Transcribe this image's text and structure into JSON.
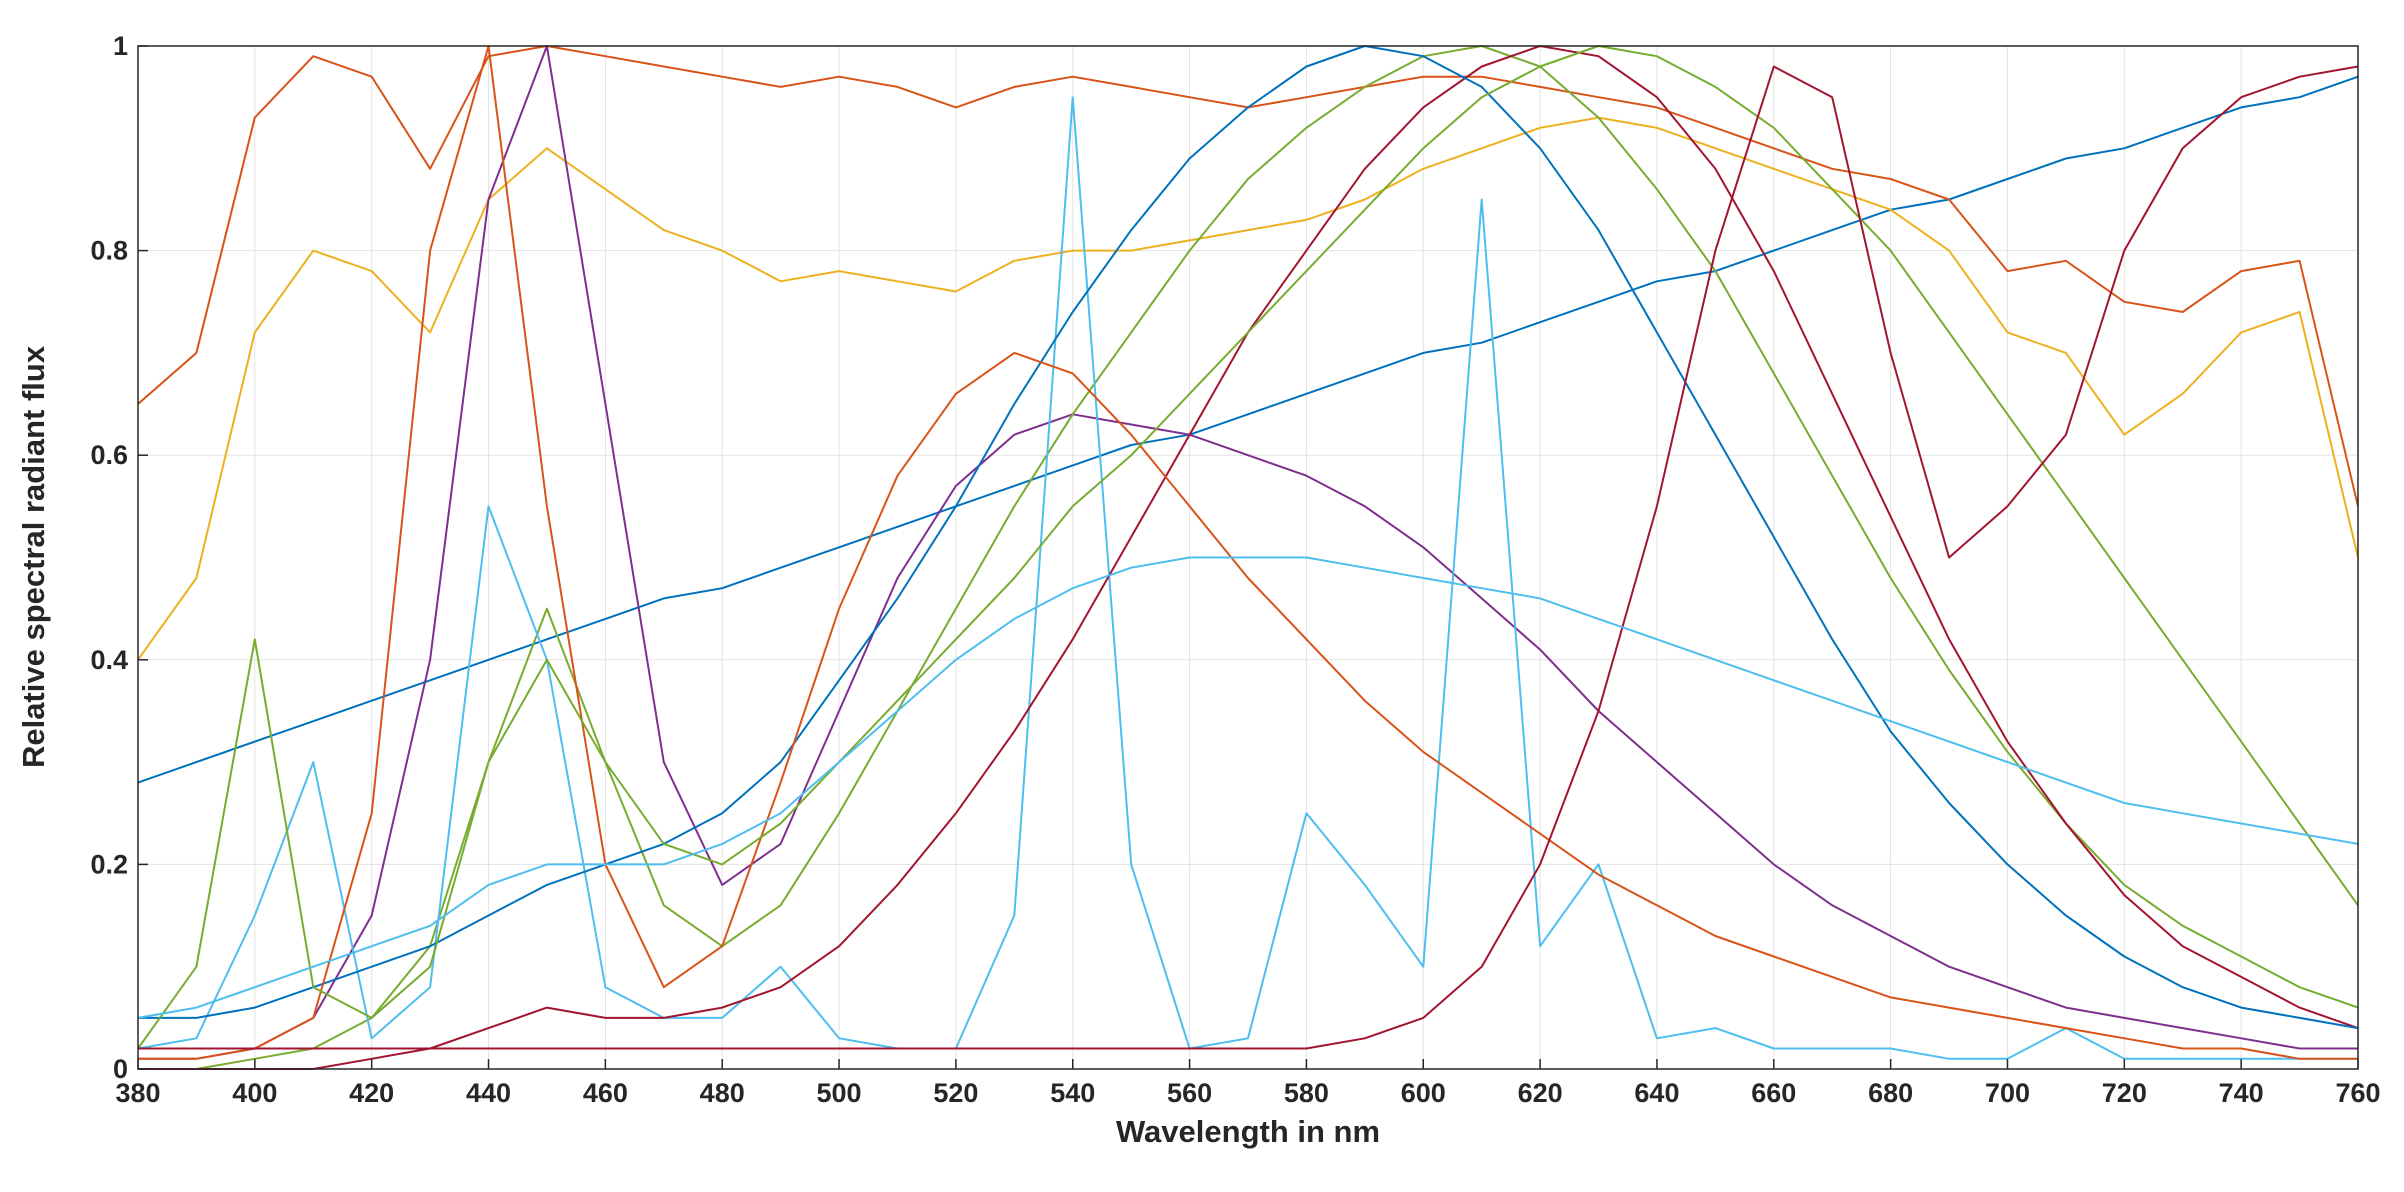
{
  "chart_data": {
    "type": "line",
    "xlabel": "Wavelength in nm",
    "ylabel": "Relative spectral radiant flux",
    "x": [
      380,
      390,
      400,
      410,
      420,
      430,
      440,
      450,
      460,
      470,
      480,
      490,
      500,
      510,
      520,
      530,
      540,
      550,
      560,
      570,
      580,
      590,
      600,
      610,
      620,
      630,
      640,
      650,
      660,
      670,
      680,
      690,
      700,
      710,
      720,
      730,
      740,
      750,
      760
    ],
    "xlim": [
      380,
      760
    ],
    "xticks": [
      380,
      400,
      420,
      440,
      460,
      480,
      500,
      520,
      540,
      560,
      580,
      600,
      620,
      640,
      660,
      680,
      700,
      720,
      740,
      760
    ],
    "ylim": [
      0,
      1
    ],
    "yticks": [
      0,
      0.2,
      0.4,
      0.6,
      0.8,
      1
    ],
    "grid": true,
    "series": [
      {
        "color": "#0072BD",
        "values": [
          0.28,
          0.3,
          0.32,
          0.34,
          0.36,
          0.38,
          0.4,
          0.42,
          0.44,
          0.46,
          0.47,
          0.49,
          0.51,
          0.53,
          0.55,
          0.57,
          0.59,
          0.61,
          0.62,
          0.64,
          0.66,
          0.68,
          0.7,
          0.71,
          0.73,
          0.75,
          0.77,
          0.78,
          0.8,
          0.82,
          0.84,
          0.85,
          0.87,
          0.89,
          0.9,
          0.92,
          0.94,
          0.95,
          0.97
        ]
      },
      {
        "color": "#D95319",
        "values": [
          0.65,
          0.7,
          0.93,
          0.99,
          0.97,
          0.88,
          0.99,
          1.0,
          0.99,
          0.98,
          0.97,
          0.96,
          0.97,
          0.96,
          0.94,
          0.96,
          0.97,
          0.96,
          0.95,
          0.94,
          0.95,
          0.96,
          0.97,
          0.97,
          0.96,
          0.95,
          0.94,
          0.92,
          0.9,
          0.88,
          0.87,
          0.85,
          0.78,
          0.79,
          0.75,
          0.74,
          0.78,
          0.79,
          0.55
        ]
      },
      {
        "color": "#EDB120",
        "values": [
          0.4,
          0.48,
          0.72,
          0.8,
          0.78,
          0.72,
          0.85,
          0.9,
          0.86,
          0.82,
          0.8,
          0.77,
          0.78,
          0.77,
          0.76,
          0.79,
          0.8,
          0.8,
          0.81,
          0.82,
          0.83,
          0.85,
          0.88,
          0.9,
          0.92,
          0.93,
          0.92,
          0.9,
          0.88,
          0.86,
          0.84,
          0.8,
          0.72,
          0.7,
          0.62,
          0.66,
          0.72,
          0.74,
          0.5
        ]
      },
      {
        "color": "#7E2F8E",
        "values": [
          0.01,
          0.01,
          0.02,
          0.05,
          0.15,
          0.4,
          0.85,
          1.0,
          0.65,
          0.3,
          0.18,
          0.22,
          0.35,
          0.48,
          0.57,
          0.62,
          0.64,
          0.63,
          0.62,
          0.6,
          0.58,
          0.55,
          0.51,
          0.46,
          0.41,
          0.35,
          0.3,
          0.25,
          0.2,
          0.16,
          0.13,
          0.1,
          0.08,
          0.06,
          0.05,
          0.04,
          0.03,
          0.02,
          0.02
        ]
      },
      {
        "color": "#77AC30",
        "values": [
          0.0,
          0.0,
          0.01,
          0.02,
          0.05,
          0.12,
          0.3,
          0.45,
          0.3,
          0.16,
          0.12,
          0.16,
          0.25,
          0.35,
          0.45,
          0.55,
          0.64,
          0.72,
          0.8,
          0.87,
          0.92,
          0.96,
          0.99,
          1.0,
          0.98,
          0.93,
          0.86,
          0.78,
          0.68,
          0.58,
          0.48,
          0.39,
          0.31,
          0.24,
          0.18,
          0.14,
          0.11,
          0.08,
          0.06
        ]
      },
      {
        "color": "#4DBEEE",
        "values": [
          0.02,
          0.03,
          0.15,
          0.3,
          0.03,
          0.08,
          0.55,
          0.4,
          0.08,
          0.05,
          0.05,
          0.1,
          0.03,
          0.02,
          0.02,
          0.15,
          0.95,
          0.2,
          0.02,
          0.03,
          0.25,
          0.18,
          0.1,
          0.85,
          0.12,
          0.2,
          0.03,
          0.04,
          0.02,
          0.02,
          0.02,
          0.01,
          0.01,
          0.04,
          0.01,
          0.01,
          0.01,
          0.01,
          0.01
        ]
      },
      {
        "color": "#A2142F",
        "values": [
          0.0,
          0.0,
          0.0,
          0.0,
          0.01,
          0.02,
          0.04,
          0.06,
          0.05,
          0.05,
          0.06,
          0.08,
          0.12,
          0.18,
          0.25,
          0.33,
          0.42,
          0.52,
          0.62,
          0.72,
          0.8,
          0.88,
          0.94,
          0.98,
          1.0,
          0.99,
          0.95,
          0.88,
          0.78,
          0.66,
          0.54,
          0.42,
          0.32,
          0.24,
          0.17,
          0.12,
          0.09,
          0.06,
          0.04
        ]
      },
      {
        "color": "#0072BD",
        "values": [
          0.05,
          0.05,
          0.06,
          0.08,
          0.1,
          0.12,
          0.15,
          0.18,
          0.2,
          0.22,
          0.25,
          0.3,
          0.38,
          0.46,
          0.55,
          0.65,
          0.74,
          0.82,
          0.89,
          0.94,
          0.98,
          1.0,
          0.99,
          0.96,
          0.9,
          0.82,
          0.72,
          0.62,
          0.52,
          0.42,
          0.33,
          0.26,
          0.2,
          0.15,
          0.11,
          0.08,
          0.06,
          0.05,
          0.04
        ]
      },
      {
        "color": "#D95319",
        "values": [
          0.01,
          0.01,
          0.02,
          0.05,
          0.25,
          0.8,
          1.0,
          0.55,
          0.2,
          0.08,
          0.12,
          0.28,
          0.45,
          0.58,
          0.66,
          0.7,
          0.68,
          0.62,
          0.55,
          0.48,
          0.42,
          0.36,
          0.31,
          0.27,
          0.23,
          0.19,
          0.16,
          0.13,
          0.11,
          0.09,
          0.07,
          0.06,
          0.05,
          0.04,
          0.03,
          0.02,
          0.02,
          0.01,
          0.01
        ]
      },
      {
        "color": "#77AC30",
        "values": [
          0.02,
          0.1,
          0.42,
          0.08,
          0.05,
          0.1,
          0.3,
          0.4,
          0.3,
          0.22,
          0.2,
          0.24,
          0.3,
          0.36,
          0.42,
          0.48,
          0.55,
          0.6,
          0.66,
          0.72,
          0.78,
          0.84,
          0.9,
          0.95,
          0.98,
          1.0,
          0.99,
          0.96,
          0.92,
          0.86,
          0.8,
          0.72,
          0.64,
          0.56,
          0.48,
          0.4,
          0.32,
          0.24,
          0.16
        ]
      },
      {
        "color": "#A2142F",
        "values": [
          0.02,
          0.02,
          0.02,
          0.02,
          0.02,
          0.02,
          0.02,
          0.02,
          0.02,
          0.02,
          0.02,
          0.02,
          0.02,
          0.02,
          0.02,
          0.02,
          0.02,
          0.02,
          0.02,
          0.02,
          0.02,
          0.03,
          0.05,
          0.1,
          0.2,
          0.35,
          0.55,
          0.8,
          0.98,
          0.95,
          0.7,
          0.5,
          0.55,
          0.62,
          0.8,
          0.9,
          0.95,
          0.97,
          0.98
        ]
      },
      {
        "color": "#4DBEEE",
        "values": [
          0.05,
          0.06,
          0.08,
          0.1,
          0.12,
          0.14,
          0.18,
          0.2,
          0.2,
          0.2,
          0.22,
          0.25,
          0.3,
          0.35,
          0.4,
          0.44,
          0.47,
          0.49,
          0.5,
          0.5,
          0.5,
          0.49,
          0.48,
          0.47,
          0.46,
          0.44,
          0.42,
          0.4,
          0.38,
          0.36,
          0.34,
          0.32,
          0.3,
          0.28,
          0.26,
          0.25,
          0.24,
          0.23,
          0.22
        ]
      }
    ]
  }
}
